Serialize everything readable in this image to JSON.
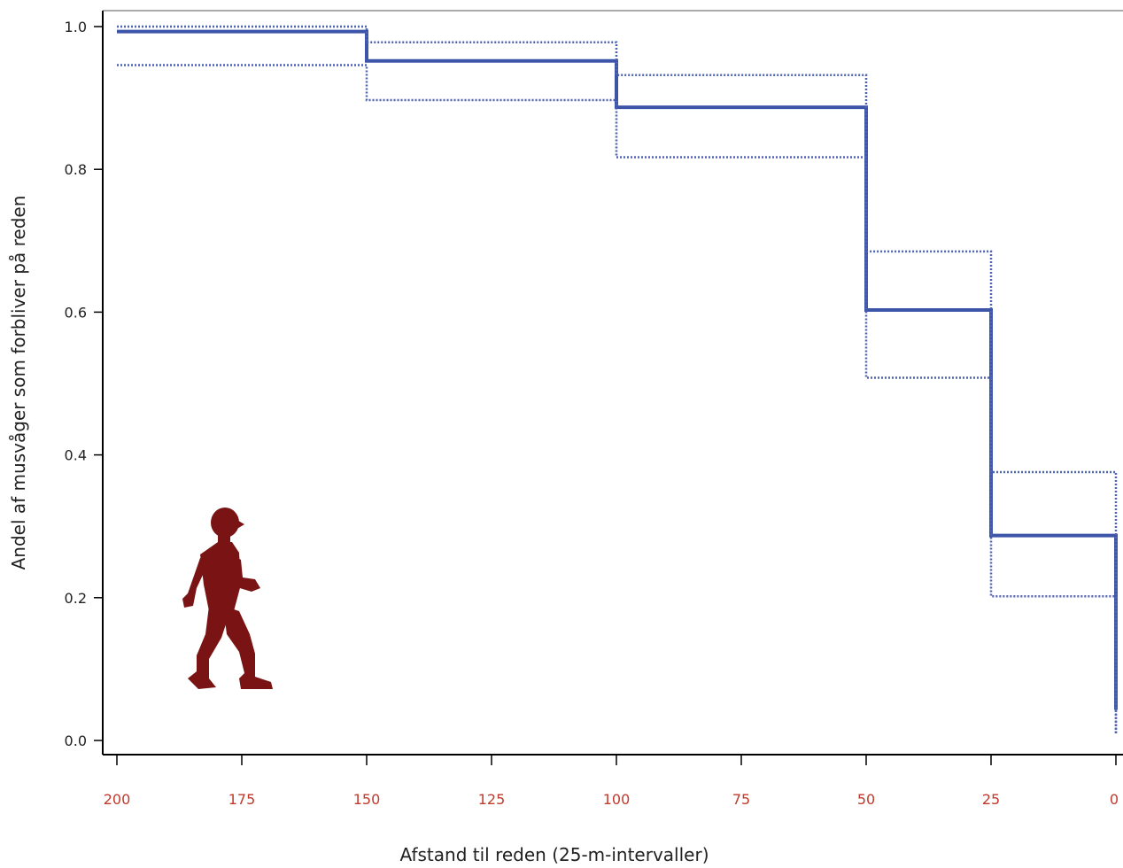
{
  "chart_data": {
    "type": "line",
    "step": true,
    "title": "",
    "xlabel": "Afstand til reden (25-m-intervaller)",
    "ylabel": "Andel af musvåger som forbliver på reden",
    "x_reversed": true,
    "xlim": [
      200,
      0
    ],
    "ylim": [
      0,
      1.0
    ],
    "x_ticks": [
      200,
      175,
      150,
      125,
      100,
      75,
      50,
      25,
      0
    ],
    "y_ticks": [
      0.0,
      0.2,
      0.4,
      0.6,
      0.8,
      1.0
    ],
    "y_tick_labels": [
      "0.0",
      "0.2",
      "0.4",
      "0.6",
      "0.8",
      "1.0"
    ],
    "grid": false,
    "series": [
      {
        "role": "estimate",
        "style": "solid",
        "color": "#3d55a8",
        "x": [
          200,
          150,
          100,
          50,
          25,
          0
        ],
        "y": [
          0.993,
          0.952,
          0.887,
          0.603,
          0.287,
          0.043
        ]
      },
      {
        "role": "upper",
        "style": "dotted",
        "color": "#4f63b5",
        "x": [
          200,
          150,
          100,
          50,
          25,
          0
        ],
        "y": [
          1.0,
          0.978,
          0.932,
          0.685,
          0.376,
          0.01
        ]
      },
      {
        "role": "lower",
        "style": "dotted",
        "color": "#4f63b5",
        "x": [
          200,
          150,
          100,
          50,
          25,
          0
        ],
        "y": [
          0.946,
          0.897,
          0.817,
          0.508,
          0.202,
          0.01
        ]
      }
    ],
    "colors": {
      "axis": "#000000",
      "tick_label_x": "#c0392b",
      "tick_label_y": "#222222",
      "figure_icon": "#7a1414"
    },
    "decoration": "walking-person-icon"
  }
}
